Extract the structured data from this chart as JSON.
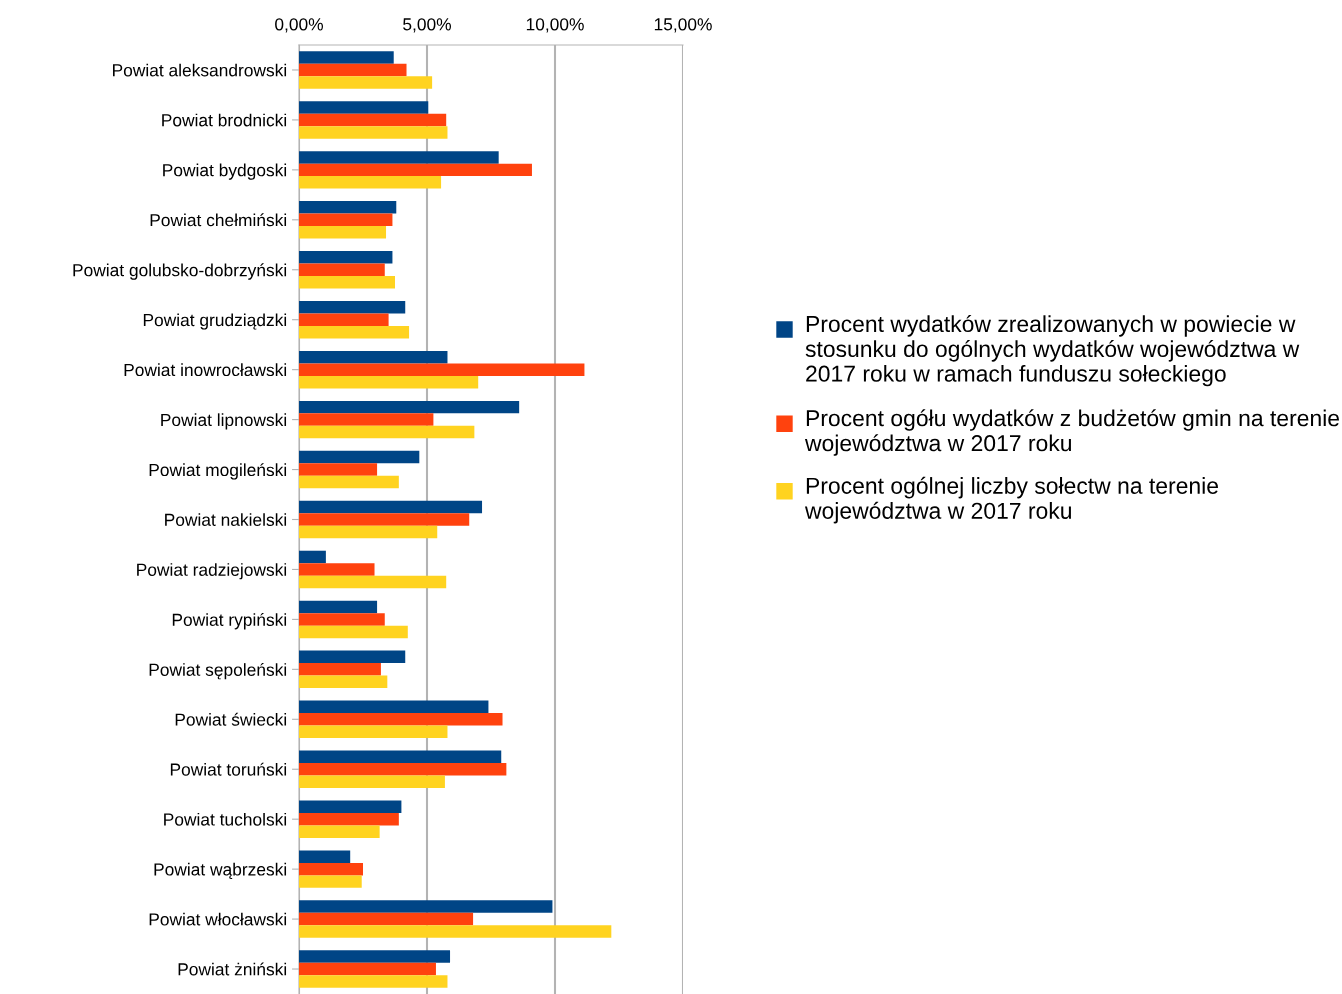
{
  "chart_data": {
    "type": "bar",
    "orientation": "horizontal",
    "categories": [
      "Powiat aleksandrowski",
      "Powiat brodnicki",
      "Powiat bydgoski",
      "Powiat chełmiński",
      "Powiat golubsko-dobrzyński",
      "Powiat grudziądzki",
      "Powiat inowrocławski",
      "Powiat lipnowski",
      "Powiat mogileński",
      "Powiat nakielski",
      "Powiat radziejowski",
      "Powiat rypiński",
      "Powiat sępoleński",
      "Powiat świecki",
      "Powiat toruński",
      "Powiat tucholski",
      "Powiat wąbrzeski",
      "Powiat włocławski",
      "Powiat żniński"
    ],
    "series": [
      {
        "name": "Procent wydatków zrealizowanych w powiecie w stosunku do ogólnych wydatków województwa w 2017 roku w ramach funduszu sołeckiego",
        "color": "#004586",
        "values": [
          3.7,
          5.05,
          7.8,
          3.8,
          3.65,
          4.15,
          5.8,
          8.6,
          4.7,
          7.15,
          1.05,
          3.05,
          4.15,
          7.4,
          7.9,
          4.0,
          2.0,
          9.9,
          5.9
        ]
      },
      {
        "name": "Procent ogółu wydatków z budżetów gmin na terenie województwa w 2017 roku",
        "color": "#ff420e",
        "values": [
          4.2,
          5.75,
          9.1,
          3.65,
          3.35,
          3.5,
          11.15,
          5.25,
          3.05,
          6.65,
          2.95,
          3.35,
          3.2,
          7.95,
          8.1,
          3.9,
          2.5,
          6.8,
          5.35
        ]
      },
      {
        "name": "Procent ogólnej liczby sołectw na terenie województwa w 2017 roku",
        "color": "#ffd320",
        "values": [
          5.2,
          5.8,
          5.55,
          3.4,
          3.75,
          4.3,
          7.0,
          6.85,
          3.9,
          5.4,
          5.75,
          4.25,
          3.45,
          5.8,
          5.7,
          3.15,
          2.45,
          12.2,
          5.8
        ]
      }
    ],
    "xlim": [
      0,
      15
    ],
    "xticks": [
      {
        "value": 0,
        "label": "0,00%"
      },
      {
        "value": 5,
        "label": "5,00%"
      },
      {
        "value": 10,
        "label": "10,00%"
      },
      {
        "value": 15,
        "label": "15,00%"
      }
    ],
    "grid": "x",
    "legend": "right"
  }
}
